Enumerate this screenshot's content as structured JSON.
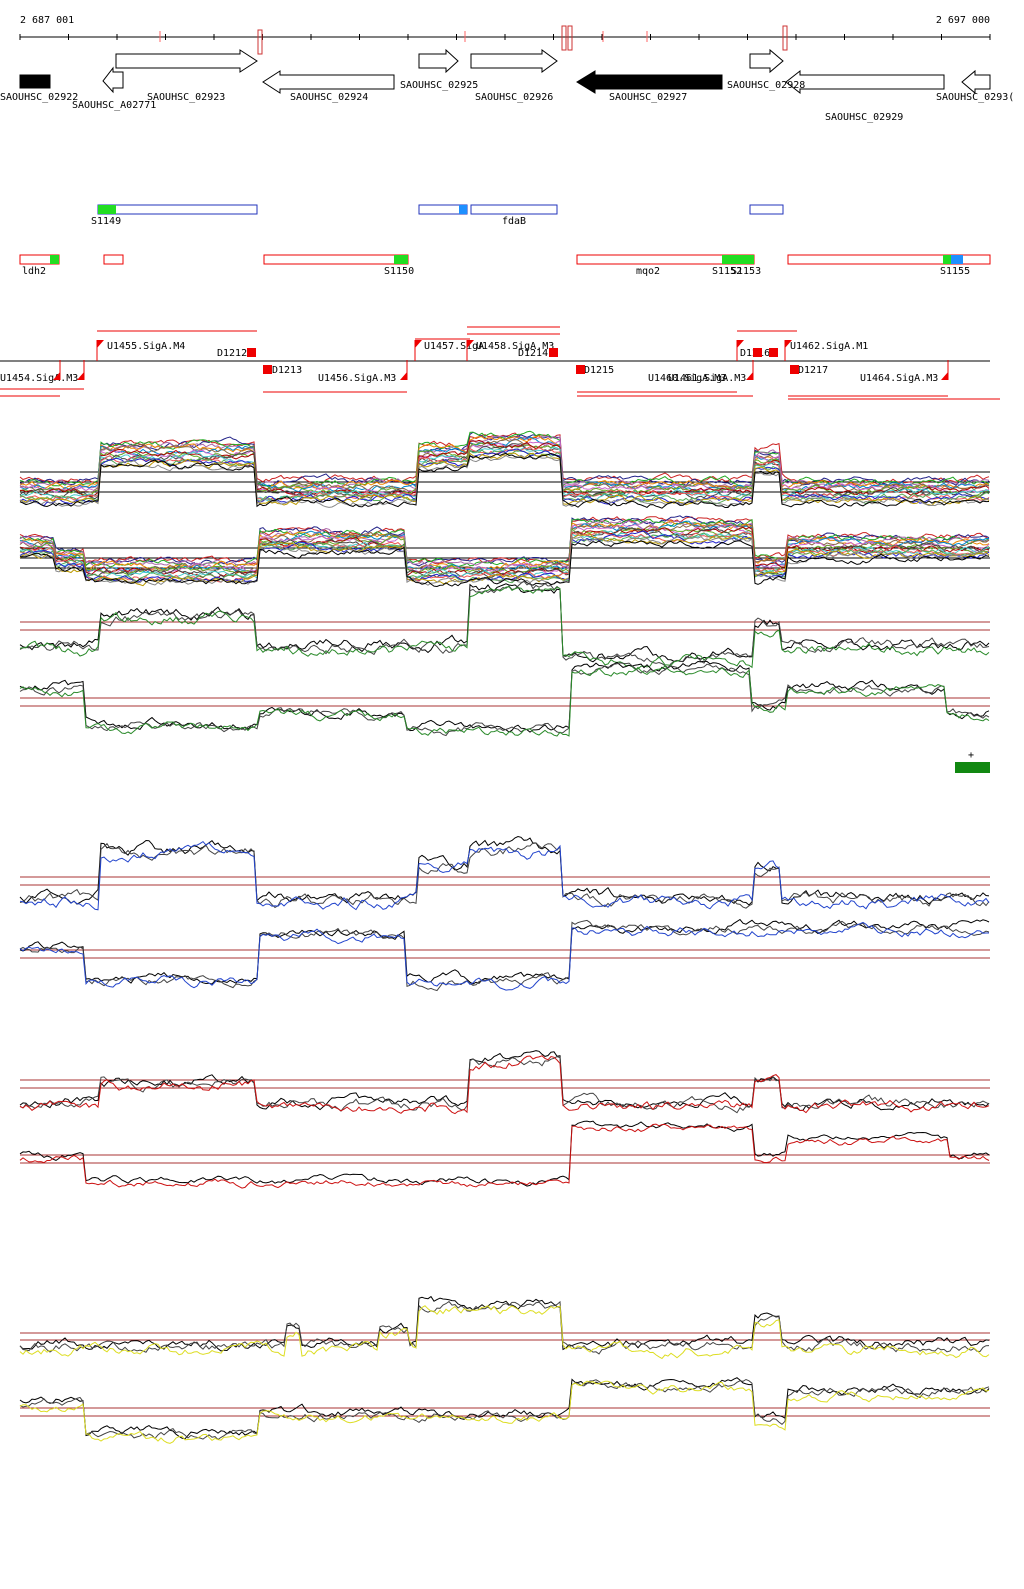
{
  "coordinates": {
    "start": "2 687 001",
    "end": "2 697 000"
  },
  "genes": [
    "SAOUHSC_02922",
    "SAOUHSC_A02771",
    "SAOUHSC_02923",
    "SAOUHSC_02924",
    "SAOUHSC_02925",
    "SAOUHSC_02926",
    "SAOUHSC_02927",
    "SAOUHSC_02928",
    "SAOUHSC_02929",
    "SAOUHSC_0293("
  ],
  "features": [
    "S1149",
    "fdaB",
    "ldh2",
    "S1150",
    "mqo2",
    "S1152",
    "S1153",
    "S1155"
  ],
  "promoters": [
    "U1455.SigA.M4",
    "D1212",
    "U1457.SigA",
    "U1458.SigA.M3",
    "D1214",
    "D1213",
    "U1456.SigA.M3",
    "U1454.SigA.M3",
    "D1215",
    "U1460.SigA.M3",
    "U1461.SigA.M3",
    "D1216",
    "U1462.SigA.M1",
    "D1217",
    "U1464.SigA.M3"
  ],
  "marker": "+"
}
